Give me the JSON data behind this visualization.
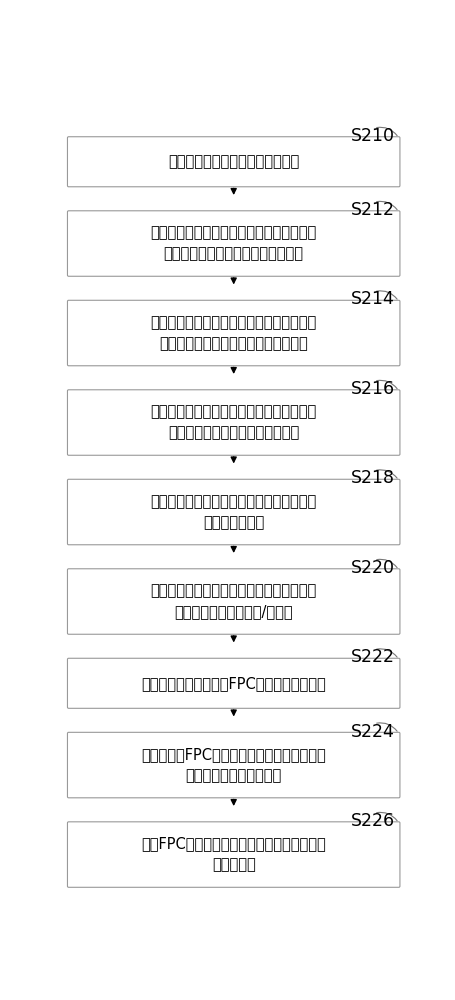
{
  "steps": [
    {
      "id": "S210",
      "lines": [
        "提供设有第一对位标记的玻璃面板"
      ],
      "n_lines": 1
    },
    {
      "id": "S212",
      "lines": [
        "通过摄像模块对玻璃面板进行摄像以生成第\n一图像信息，并传输给图像处理模块"
      ],
      "n_lines": 2
    },
    {
      "id": "S214",
      "lines": [
        "对位标记控制模块产生第二对位标记信号，\n由图像处理模块处理后发送给显示模块"
      ],
      "n_lines": 2
    },
    {
      "id": "S216",
      "lines": [
        "图像处理模块综合对第一图像信息和第二图\n像信息进行处理后发送给显示模块"
      ],
      "n_lines": 2
    },
    {
      "id": "S218",
      "lines": [
        "显示模块根据对从图像处理模块接收到的图\n像信息进行显示"
      ],
      "n_lines": 2
    },
    {
      "id": "S220",
      "lines": [
        "通过对位标记控制模块调整显示模块显示的\n第二对位标记的位置和/或大小"
      ],
      "n_lines": 2
    },
    {
      "id": "S222",
      "lines": [
        "将设有第三对位标记的FPC置于玻璃面板上方"
      ],
      "n_lines": 1
    },
    {
      "id": "S224",
      "lines": [
        "摄像模块对FPC进行摄像，经图像处理模块处\n理后由显示模块进行显示"
      ],
      "n_lines": 2
    },
    {
      "id": "S226",
      "lines": [
        "调整FPC的位置，使得第二对位标记和第三对\n位标记对准"
      ],
      "n_lines": 2
    }
  ],
  "box_color": "#ffffff",
  "box_edge_color": "#999999",
  "text_color": "#000000",
  "label_color": "#000000",
  "arrow_color": "#000000",
  "background_color": "#ffffff",
  "font_size": 10.5,
  "label_font_size": 12.5
}
